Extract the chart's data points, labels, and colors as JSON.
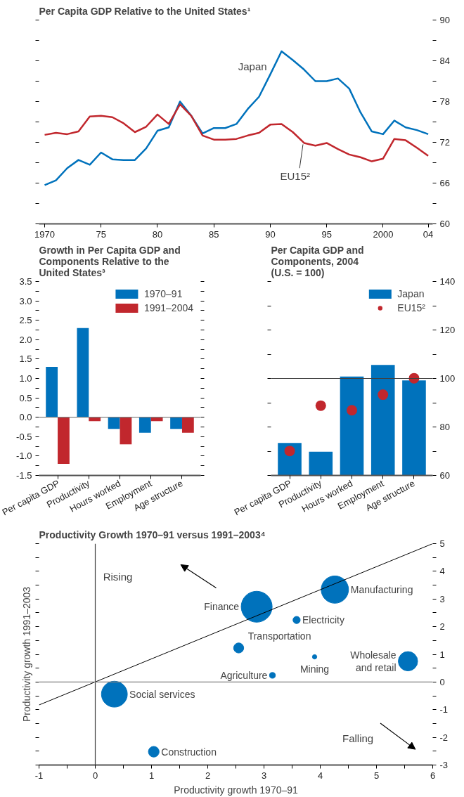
{
  "chart_data": [
    {
      "type": "line",
      "title": "Per Capita GDP Relative to the United States¹",
      "x": [
        1970,
        1971,
        1972,
        1973,
        1974,
        1975,
        1976,
        1977,
        1978,
        1979,
        1980,
        1981,
        1982,
        1983,
        1984,
        1985,
        1986,
        1987,
        1988,
        1989,
        1990,
        1991,
        1992,
        1993,
        1994,
        1995,
        1996,
        1997,
        1998,
        1999,
        2000,
        2001,
        2002,
        2003,
        2004
      ],
      "series": [
        {
          "name": "Japan",
          "color": "#0072bc",
          "values": [
            65.7,
            66.4,
            68.2,
            69.4,
            68.7,
            70.5,
            69.5,
            69.4,
            69.4,
            71.1,
            73.7,
            74.2,
            78.0,
            75.9,
            73.3,
            74.1,
            74.1,
            74.7,
            76.9,
            78.7,
            82.0,
            85.4,
            84.1,
            82.7,
            81.0,
            81.0,
            81.4,
            79.9,
            76.4,
            73.6,
            73.2,
            75.2,
            74.2,
            73.8,
            73.2
          ]
        },
        {
          "name": "EU15²",
          "color": "#c1272d",
          "values": [
            73.1,
            73.4,
            73.2,
            73.6,
            75.8,
            75.9,
            75.7,
            74.8,
            73.5,
            74.3,
            76.1,
            74.7,
            77.6,
            75.9,
            73.0,
            72.4,
            72.4,
            72.5,
            73.0,
            73.4,
            74.6,
            74.7,
            73.5,
            71.9,
            71.5,
            71.9,
            71.0,
            70.2,
            69.8,
            69.2,
            69.6,
            72.5,
            72.3,
            71.2,
            70.0
          ]
        }
      ],
      "xlim": [
        1969.5,
        2004.4
      ],
      "xticks": [
        1970,
        {
          "value": 1975,
          "label": "75"
        },
        {
          "value": 1980,
          "label": "80"
        },
        {
          "value": 1985,
          "label": "85"
        },
        {
          "value": 1990,
          "label": "90"
        },
        {
          "value": 1995,
          "label": "95"
        },
        2000,
        {
          "value": 2004,
          "label": "04"
        }
      ],
      "ylim": [
        60,
        90
      ],
      "yticks": [
        60,
        {
          "value": 63,
          "label": null
        },
        66,
        {
          "value": 69,
          "label": null
        },
        72,
        {
          "value": 75,
          "label": null
        },
        78,
        {
          "value": 81,
          "label": null
        },
        84,
        {
          "value": 87,
          "label": null
        },
        90
      ],
      "grid": false,
      "legend": false
    },
    {
      "type": "bar",
      "title": "Growth in Per Capita GDP and Components Relative to the United States³",
      "categories": [
        "Per capita GDP",
        "Productivity",
        "Hours worked",
        "Employment",
        "Age structure"
      ],
      "series": [
        {
          "name": "1970–91",
          "color": "#0072bc",
          "values": [
            1.3,
            2.3,
            -0.3,
            -0.4,
            -0.3
          ]
        },
        {
          "name": "1991–2004",
          "color": "#c1272d",
          "values": [
            -1.2,
            -0.1,
            -0.7,
            -0.1,
            -0.4
          ]
        }
      ],
      "ylim": [
        -1.5,
        3.5
      ],
      "yticks": [
        -1.5,
        {
          "value": -1.25,
          "label": null
        },
        {
          "value": -1,
          "label": "-1.0"
        },
        {
          "value": -0.75,
          "label": null
        },
        -0.5,
        {
          "value": -0.25,
          "label": null
        },
        {
          "value": 0,
          "label": "0.0"
        },
        {
          "value": 0.25,
          "label": null
        },
        0.5,
        {
          "value": 0.75,
          "label": null
        },
        {
          "value": 1,
          "label": "1.0"
        },
        {
          "value": 1.25,
          "label": null
        },
        1.5,
        {
          "value": 1.75,
          "label": null
        },
        {
          "value": 2,
          "label": "2.0"
        },
        {
          "value": 2.25,
          "label": null
        },
        2.5,
        {
          "value": 2.75,
          "label": null
        },
        {
          "value": 3,
          "label": "3.0"
        },
        {
          "value": 3.25,
          "label": null
        },
        3.5
      ],
      "ref_lines": [
        {
          "axis": "y",
          "value": 0,
          "color": "#808080"
        }
      ],
      "grid": false,
      "legend": "top right"
    },
    {
      "type": "bar",
      "title": "Per Capita GDP and Components, 2004 (U.S. = 100)",
      "categories": [
        "Per capita GDP",
        "Productivity",
        "Hours worked",
        "Employment",
        "Age structure"
      ],
      "series": [
        {
          "name": "Japan",
          "color": "#0072bc",
          "values": [
            73.4,
            69.8,
            100.8,
            105.6,
            99.2
          ]
        },
        {
          "name": "EU15²",
          "type": "scatter",
          "color": "#c1272d",
          "values": [
            70.1,
            88.8,
            86.9,
            93.3,
            100.1
          ]
        }
      ],
      "ylim": [
        60,
        140
      ],
      "yticks": [
        60,
        {
          "value": 70,
          "label": null
        },
        80,
        {
          "value": 90,
          "label": null
        },
        100,
        {
          "value": 110,
          "label": null
        },
        120,
        {
          "value": 130,
          "label": null
        },
        140
      ],
      "ref_lines": [
        {
          "axis": "y",
          "value": 100,
          "color": "#404040"
        }
      ],
      "marker": "circle",
      "grid": false,
      "legend": "top right"
    },
    {
      "type": "bubble",
      "title": "Productivity Growth 1970–91 versus 1991–2003⁴",
      "xlabel": "Productivity growth 1970–91",
      "ylabel": "Productivity growth 1991–2003",
      "series": [
        {
          "type": "bubble",
          "color": "#0072bc",
          "x": [
            2.87,
            4.26,
            3.58,
            2.55,
            3.9,
            5.56,
            3.15,
            0.34,
            1.04
          ],
          "values": [
            2.72,
            3.34,
            2.24,
            1.23,
            0.91,
            0.75,
            0.24,
            -0.44,
            -2.52
          ],
          "sizes": [
            1,
            0.78,
            0.054,
            0.106,
            0.02,
            0.39,
            0.035,
            0.7,
            0.12
          ]
        },
        {
          "type": "line",
          "color": "#000000",
          "x": [
            -1,
            6
          ],
          "values": [
            -0.83,
            5
          ]
        }
      ],
      "annotations": [
        {
          "text": "Finance",
          "x": 2.87,
          "y": 2.72
        },
        {
          "text": "Manufacturing",
          "x": 4.26,
          "y": 3.34
        },
        {
          "text": "Electricity",
          "x": 3.58,
          "y": 2.24
        },
        {
          "text": "Transportation",
          "x": 2.55,
          "y": 1.23
        },
        {
          "text": "Mining",
          "x": 3.9,
          "y": 0.91
        },
        {
          "text": "Wholesale\nand retail",
          "x": 5.56,
          "y": 0.75
        },
        {
          "text": "Agriculture",
          "x": 3.15,
          "y": 0.24
        },
        {
          "text": "Social services",
          "x": 0.34,
          "y": -0.44
        },
        {
          "text": "Construction",
          "x": 1.04,
          "y": -2.52
        },
        "Rising",
        "Falling"
      ],
      "xlim": [
        -1,
        6
      ],
      "xticks": [
        -1,
        {
          "value": -0.5,
          "label": null
        },
        0,
        {
          "value": 0.5,
          "label": null
        },
        1,
        {
          "value": 1.5,
          "label": null
        },
        2,
        {
          "value": 2.5,
          "label": null
        },
        3,
        {
          "value": 3.5,
          "label": null
        },
        4,
        {
          "value": 4.5,
          "label": null
        },
        5,
        {
          "value": 5.5,
          "label": null
        },
        6
      ],
      "ylim": [
        -3,
        5
      ],
      "yticks": [
        -3,
        {
          "value": -2.5,
          "label": null
        },
        -2,
        {
          "value": -1.5,
          "label": null
        },
        -1,
        {
          "value": -0.5,
          "label": null
        },
        0,
        {
          "value": 0.5,
          "label": null
        },
        1,
        {
          "value": 1.5,
          "label": null
        },
        2,
        {
          "value": 2.5,
          "label": null
        },
        3,
        {
          "value": 3.5,
          "label": null
        },
        4,
        {
          "value": 4.5,
          "label": null
        },
        5
      ],
      "ref_lines": [
        {
          "axis": "x",
          "value": 0,
          "color": "#404040"
        },
        {
          "axis": "y",
          "value": 0,
          "color": "#808080"
        }
      ],
      "grid": false,
      "legend": false
    }
  ]
}
